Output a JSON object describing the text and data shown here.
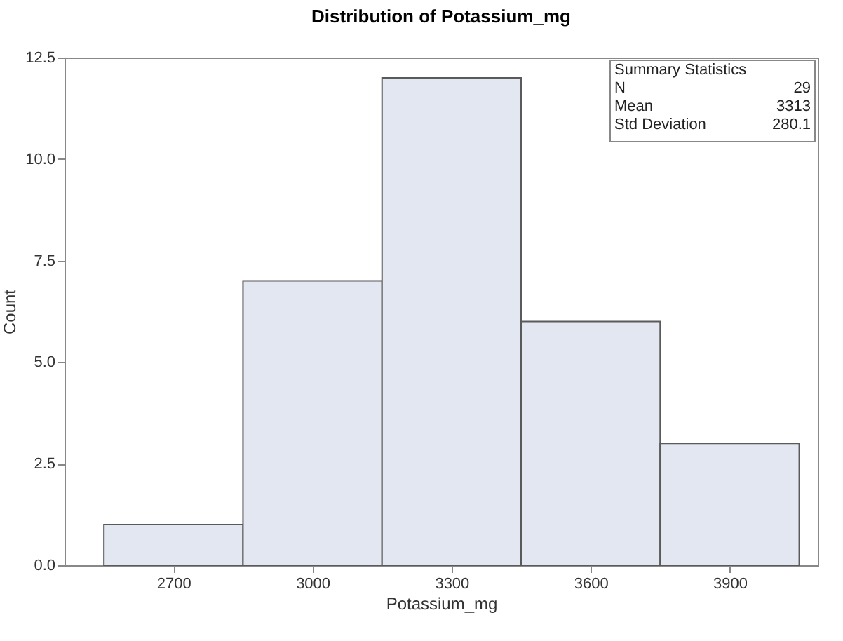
{
  "chart_data": {
    "type": "histogram",
    "title": "Distribution of Potassium_mg",
    "xlabel": "Potassium_mg",
    "ylabel": "Count",
    "bins": [
      2550,
      2850,
      3150,
      3450,
      3750,
      4050
    ],
    "values": [
      1,
      7,
      12,
      6,
      3
    ],
    "color": "#e3e7f1",
    "xlim": [
      2465,
      4090
    ],
    "xticks": [
      2700,
      3000,
      3300,
      3600,
      3900
    ],
    "ylim": [
      0,
      12.5
    ],
    "yticks": [
      {
        "value": 0,
        "label": "0.0"
      },
      {
        "value": 2.5,
        "label": "2.5"
      },
      {
        "value": 5,
        "label": "5.0"
      },
      {
        "value": 7.5,
        "label": "7.5"
      },
      {
        "value": 10,
        "label": "10.0"
      },
      {
        "value": 12.5,
        "label": "12.5"
      }
    ],
    "grid": false,
    "annotations": [
      "Summary Statistics",
      "N",
      "29",
      "Mean",
      "3313",
      "Std Deviation",
      "280.1"
    ]
  }
}
